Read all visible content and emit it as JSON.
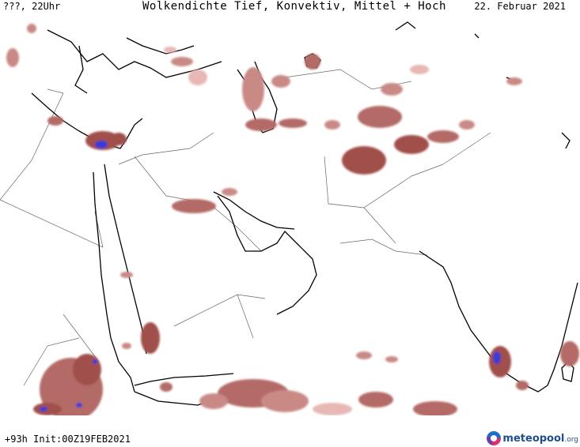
{
  "header": {
    "time_label": "???, 22Uhr",
    "title": "Wolkendichte  Tief, Konvektiv, Mittel + Hoch",
    "date": "22. Februar 2021"
  },
  "footer": {
    "run_info": "+93h Init:00Z19FEB2021",
    "brand_name": "meteopool",
    "brand_tld": ".org"
  },
  "colors": {
    "cloud_light": "#e8b8b4",
    "cloud_medium": "#c98a86",
    "cloud_dark": "#a0504c",
    "cloud_convective": "#3a3ad8",
    "coast": "#000000",
    "border": "#555555"
  }
}
